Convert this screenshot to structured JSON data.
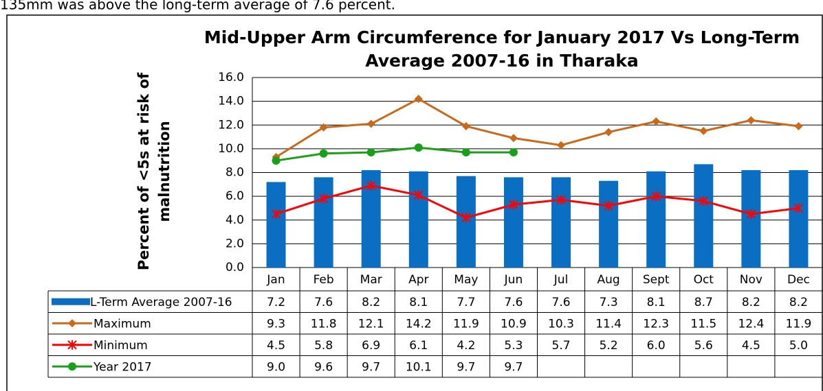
{
  "caption": "135mm was above the long-term average of 7.6 percent.",
  "chart_data": {
    "type": "bar-line-table",
    "title": [
      "Mid-Upper Arm Circumference for January 2017 Vs Long-Term",
      "Average 2007-16 in Tharaka"
    ],
    "y_label": [
      "Percent of <5s at risk of",
      "malnutrition"
    ],
    "categories": [
      "Jan",
      "Feb",
      "Mar",
      "Apr",
      "May",
      "Jun",
      "Jul",
      "Aug",
      "Sept",
      "Oct",
      "Nov",
      "Dec"
    ],
    "ylim": [
      0,
      16
    ],
    "yticks": [
      {
        "value": 0,
        "label": "0.0"
      },
      {
        "value": 2,
        "label": "2.0"
      },
      {
        "value": 4,
        "label": "4.0"
      },
      {
        "value": 6,
        "label": "6.0"
      },
      {
        "value": 8,
        "label": "8.0"
      },
      {
        "value": 10,
        "label": "10.0"
      },
      {
        "value": 12,
        "label": "12.0"
      },
      {
        "value": 14,
        "label": "14.0"
      },
      {
        "value": 16,
        "label": "16.0"
      }
    ],
    "grid": true,
    "series": [
      {
        "name": "L-Term Average 2007-16",
        "type": "bar",
        "color": "#0a6fc2",
        "values": [
          7.2,
          7.6,
          8.2,
          8.1,
          7.7,
          7.6,
          7.6,
          7.3,
          8.1,
          8.7,
          8.2,
          8.2
        ],
        "value_labels": [
          "7.2",
          "7.6",
          "8.2",
          "8.1",
          "7.7",
          "7.6",
          "7.6",
          "7.3",
          "8.1",
          "8.7",
          "8.2",
          "8.2"
        ]
      },
      {
        "name": "Maximum",
        "type": "line",
        "marker": "diamond",
        "color": "#c8691c",
        "values": [
          9.3,
          11.8,
          12.1,
          14.2,
          11.9,
          10.9,
          10.3,
          11.4,
          12.3,
          11.5,
          12.4,
          11.9
        ],
        "value_labels": [
          "9.3",
          "11.8",
          "12.1",
          "14.2",
          "11.9",
          "10.9",
          "10.3",
          "11.4",
          "12.3",
          "11.5",
          "12.4",
          "11.9"
        ]
      },
      {
        "name": "Minimum",
        "type": "line",
        "marker": "star",
        "color": "#ff0000",
        "values": [
          4.5,
          5.8,
          6.9,
          6.1,
          4.2,
          5.3,
          5.7,
          5.2,
          6.0,
          5.6,
          4.5,
          5.0
        ],
        "value_labels": [
          "4.5",
          "5.8",
          "6.9",
          "6.1",
          "4.2",
          "5.3",
          "5.7",
          "5.2",
          "6.0",
          "5.6",
          "4.5",
          "5.0"
        ]
      },
      {
        "name": "Year 2017",
        "type": "line",
        "marker": "circle",
        "color": "#19a019",
        "values": [
          9.0,
          9.6,
          9.7,
          10.1,
          9.7,
          9.7,
          null,
          null,
          null,
          null,
          null,
          null
        ],
        "value_labels": [
          "9.0",
          "9.6",
          "9.7",
          "10.1",
          "9.7",
          "9.7",
          null,
          null,
          null,
          null,
          null,
          null
        ]
      }
    ]
  }
}
